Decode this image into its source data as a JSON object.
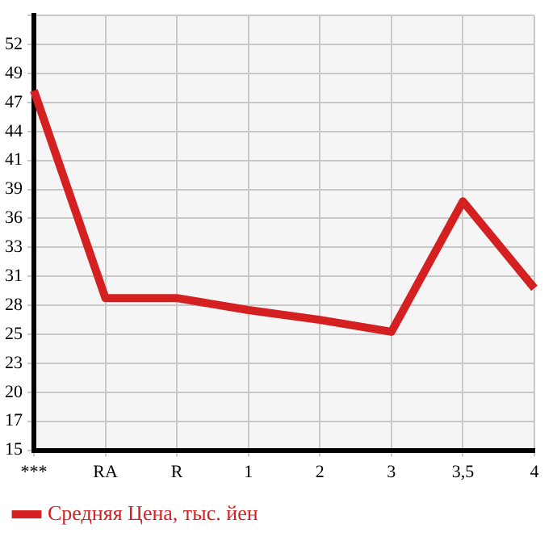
{
  "chart_data": {
    "type": "line",
    "categories": [
      "***",
      "RA",
      "R",
      "1",
      "2",
      "3",
      "3,5",
      "4"
    ],
    "series": [
      {
        "name": "Средняя Цена, тыс. йен",
        "color": "#d42020",
        "values": [
          47.8,
          28.7,
          28.7,
          27.6,
          26.7,
          25.6,
          37.6,
          29.6
        ]
      }
    ],
    "ylim": [
      14.7,
      54.7
    ],
    "yticks": [
      {
        "value": 14.7,
        "label": "15"
      },
      {
        "value": 17.37,
        "label": "17"
      },
      {
        "value": 20.03,
        "label": "20"
      },
      {
        "value": 22.7,
        "label": "23"
      },
      {
        "value": 25.37,
        "label": "25"
      },
      {
        "value": 28.03,
        "label": "28"
      },
      {
        "value": 30.7,
        "label": "31"
      },
      {
        "value": 33.37,
        "label": "33"
      },
      {
        "value": 36.03,
        "label": "36"
      },
      {
        "value": 38.7,
        "label": "39"
      },
      {
        "value": 41.37,
        "label": "41"
      },
      {
        "value": 44.03,
        "label": "44"
      },
      {
        "value": 46.7,
        "label": "47"
      },
      {
        "value": 49.37,
        "label": "49"
      },
      {
        "value": 52.03,
        "label": "52"
      },
      {
        "value": 54.7,
        "label": null
      }
    ],
    "grid": true,
    "legend": "bottom left",
    "marker": "none",
    "line_style": "solid"
  }
}
